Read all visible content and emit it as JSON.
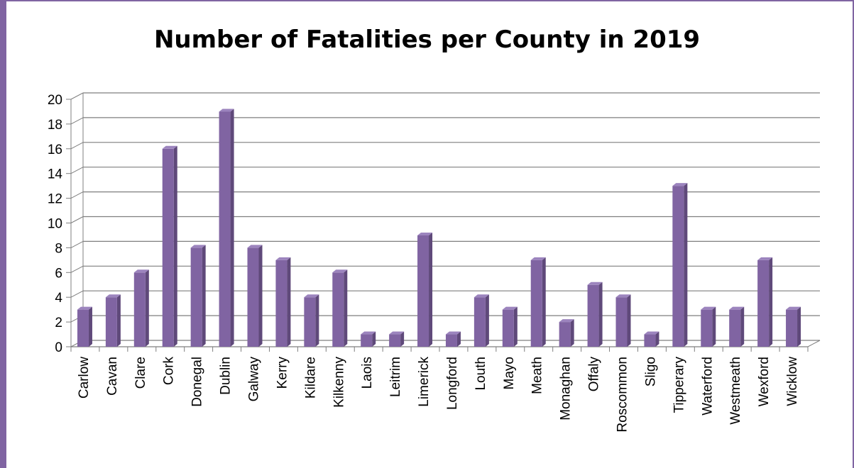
{
  "chart_data": {
    "type": "bar",
    "title": "Number of Fatalities per County in 2019",
    "xlabel": "",
    "ylabel": "",
    "ylim": [
      0,
      20
    ],
    "yticks": [
      "0",
      "2",
      "4",
      "6",
      "8",
      "10",
      "12",
      "14",
      "16",
      "18",
      "20"
    ],
    "grid": true,
    "style": "3d-column",
    "colors": {
      "bar_front": "#8064a2",
      "bar_side": "#5f497a",
      "bar_top": "#9c84be",
      "frame": "#8064a2",
      "grid": "#7f7f7f"
    },
    "categories": [
      "Carlow",
      "Cavan",
      "Clare",
      "Cork",
      "Donegal",
      "Dublin",
      "Galway",
      "Kerry",
      "Kildare",
      "Kilkenny",
      "Laois",
      "Leitrim",
      "Limerick",
      "Longford",
      "Louth",
      "Mayo",
      "Meath",
      "Monaghan",
      "Offaly",
      "Roscommon",
      "Sligo",
      "Tipperary",
      "Waterford",
      "Westmeath",
      "Wexford",
      "Wicklow"
    ],
    "values": [
      3,
      4,
      6,
      16,
      8,
      19,
      8,
      7,
      4,
      6,
      1,
      1,
      9,
      1,
      4,
      3,
      7,
      2,
      5,
      4,
      1,
      13,
      3,
      3,
      7,
      3
    ]
  }
}
